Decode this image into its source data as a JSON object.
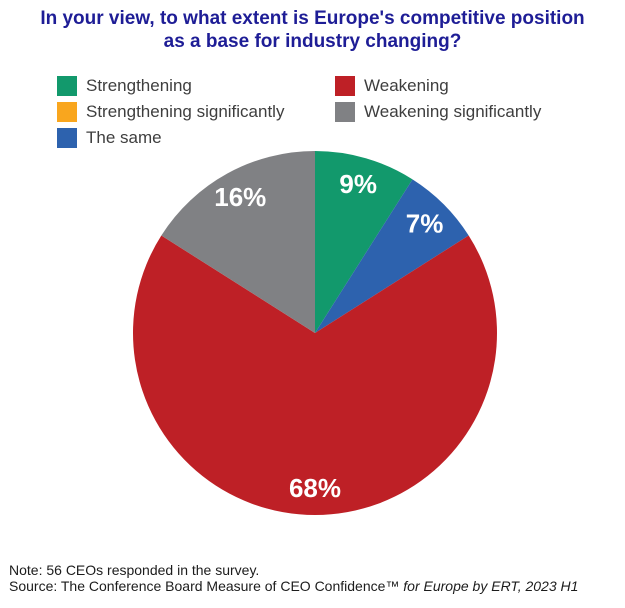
{
  "title": {
    "line1": "In your view, to what extent is Europe's competitive position",
    "line2": "as a base for industry changing?",
    "color": "#1e1d96"
  },
  "legend": {
    "items": [
      {
        "id": "strengthening",
        "label": "Strengthening",
        "color": "#12996c",
        "column": 1
      },
      {
        "id": "strengthening-significantly",
        "label": "Strengthening significantly",
        "color": "#f9a61e",
        "column": 1
      },
      {
        "id": "the-same",
        "label": "The same",
        "color": "#2d62ae",
        "column": 1
      },
      {
        "id": "weakening",
        "label": "Weakening",
        "color": "#be2026",
        "column": 2
      },
      {
        "id": "weakening-significantly",
        "label": "Weakening significantly",
        "color": "#808184",
        "column": 2
      }
    ]
  },
  "chart_data": {
    "type": "pie",
    "title": "In your view, to what extent is Europe's competitive position as a base for industry changing?",
    "unit": "percent",
    "direction": "clockwise",
    "start_angle_deg": 0,
    "label_color": "#ffffff",
    "legend_position": "top",
    "slices": [
      {
        "id": "strengthening",
        "label": "Strengthening",
        "value": 9,
        "display": "9%",
        "color": "#12996c"
      },
      {
        "id": "the-same",
        "label": "The same",
        "value": 7,
        "display": "7%",
        "color": "#2d62ae"
      },
      {
        "id": "weakening",
        "label": "Weakening",
        "value": 68,
        "display": "68%",
        "color": "#be2026"
      },
      {
        "id": "weakening-significantly",
        "label": "Weakening significantly",
        "value": 16,
        "display": "16%",
        "color": "#808184"
      },
      {
        "id": "strengthening-significantly",
        "label": "Strengthening significantly",
        "value": 0,
        "display": "",
        "color": "#f9a61e"
      }
    ]
  },
  "footer": {
    "note": "Note: 56 CEOs responded in the survey.",
    "source_regular": "Source: The Conference Board Measure of CEO Confidence™ ",
    "source_italic": "for Europe by ERT, 2023 H1"
  }
}
